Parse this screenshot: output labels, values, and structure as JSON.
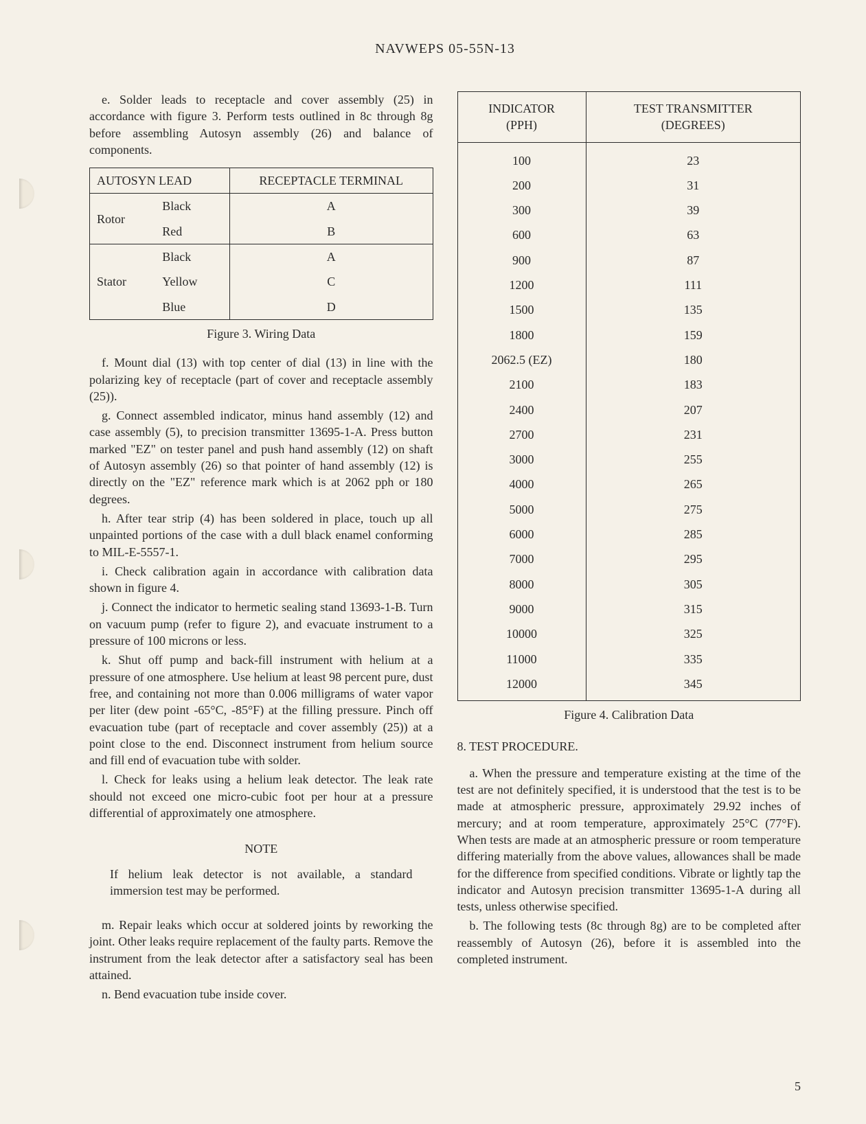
{
  "header": {
    "doc_id": "NAVWEPS 05-55N-13"
  },
  "page_number": "5",
  "left": {
    "para_e": "e.  Solder leads to receptacle and cover assembly (25) in accordance with figure 3.  Perform tests outlined in 8c through 8g before assembling Autosyn assembly (26) and balance of components.",
    "wiring_table": {
      "headers": [
        "AUTOSYN LEAD",
        "RECEPTACLE TERMINAL"
      ],
      "groups": [
        {
          "label": "Rotor",
          "rows": [
            [
              "Black",
              "A"
            ],
            [
              "Red",
              "B"
            ]
          ]
        },
        {
          "label": "Stator",
          "rows": [
            [
              "Black",
              "A"
            ],
            [
              "Yellow",
              "C"
            ],
            [
              "Blue",
              "D"
            ]
          ]
        }
      ],
      "caption": "Figure 3.  Wiring Data"
    },
    "para_f": "f.  Mount dial (13) with top center of dial (13) in line with the polarizing key of receptacle (part of cover and receptacle assembly (25)).",
    "para_g": "g.  Connect assembled indicator, minus hand assembly (12) and case assembly (5), to precision transmitter 13695-1-A.  Press button marked \"EZ\" on tester panel and push hand assembly (12) on shaft of Autosyn assembly (26) so that pointer of hand assembly (12) is directly on the \"EZ\" reference mark which is at 2062 pph or 180 degrees.",
    "para_h": "h.  After tear strip (4) has been soldered in place, touch up all unpainted portions of the case with a dull black enamel conforming to MIL-E-5557-1.",
    "para_i": "i.  Check calibration again in accordance with calibration data shown in figure 4.",
    "para_j": "j.  Connect the indicator to hermetic sealing stand 13693-1-B.  Turn on vacuum pump (refer to figure 2), and evacuate instrument to a pressure of 100 microns or less.",
    "para_k": "k.  Shut off pump and back-fill instrument with helium at a pressure of one atmosphere.  Use helium at least 98 percent pure, dust free, and containing not more than 0.006 milligrams of water vapor per liter (dew point -65°C, -85°F) at the filling pressure.  Pinch off evacuation tube (part of receptacle and cover assembly (25)) at a point close to the end.  Disconnect instrument from helium source and fill end of evacuation tube with solder.",
    "para_l": "l.  Check for leaks using a helium leak detector.  The leak rate should not exceed one micro-cubic foot per hour at a pressure differential of approximately one atmosphere.",
    "note_heading": "NOTE",
    "note_body": "If helium leak detector is not available, a standard immersion test may be performed.",
    "para_m": "m.  Repair leaks which occur at soldered joints by reworking the joint.  Other leaks require replacement of the faulty parts.  Remove the instrument from the leak detector after a satisfactory seal has been attained.",
    "para_n": "n.  Bend evacuation tube inside cover."
  },
  "right": {
    "calib_table": {
      "headers": [
        "INDICATOR (PPH)",
        "TEST TRANSMITTER (DEGREES)"
      ],
      "rows": [
        [
          "100",
          "23"
        ],
        [
          "200",
          "31"
        ],
        [
          "300",
          "39"
        ],
        [
          "600",
          "63"
        ],
        [
          "900",
          "87"
        ],
        [
          "1200",
          "111"
        ],
        [
          "1500",
          "135"
        ],
        [
          "1800",
          "159"
        ],
        [
          "2062.5 (EZ)",
          "180"
        ],
        [
          "2100",
          "183"
        ],
        [
          "2400",
          "207"
        ],
        [
          "2700",
          "231"
        ],
        [
          "3000",
          "255"
        ],
        [
          "4000",
          "265"
        ],
        [
          "5000",
          "275"
        ],
        [
          "6000",
          "285"
        ],
        [
          "7000",
          "295"
        ],
        [
          "8000",
          "305"
        ],
        [
          "9000",
          "315"
        ],
        [
          "10000",
          "325"
        ],
        [
          "11000",
          "335"
        ],
        [
          "12000",
          "345"
        ]
      ],
      "caption": "Figure 4.  Calibration Data"
    },
    "section8_heading": "8.  TEST PROCEDURE.",
    "para_a": "a.  When the pressure and temperature existing at the time of the test are not definitely specified, it is understood that the test is to be made at atmospheric pressure, approximately 29.92 inches of mercury; and at room temperature, approximately 25°C (77°F).  When tests are made at an atmospheric pressure or room temperature differing materially from the above values, allowances shall be made for the difference from specified conditions.  Vibrate or lightly tap the indicator and Autosyn precision transmitter 13695-1-A during all tests, unless otherwise specified.",
    "para_b": "b.  The following tests (8c through 8g) are to be completed after reassembly of Autosyn (26), before it is assembled into the completed instrument."
  }
}
